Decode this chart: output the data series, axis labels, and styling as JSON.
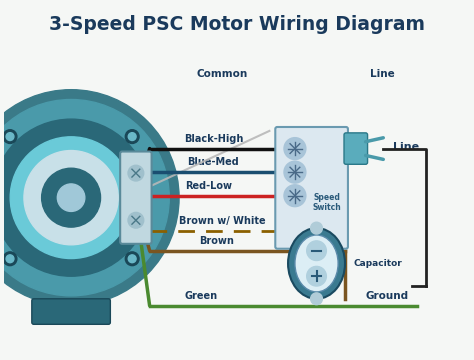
{
  "title": "3-Speed PSC Motor Wiring Diagram",
  "title_color": "#1a3a5c",
  "title_fontsize": 13.5,
  "bg_color": "#f5f7f5",
  "wire_labels": [
    "Black-High",
    "Blue-Med",
    "Red-Low",
    "Brown w/ White",
    "Brown",
    "Green"
  ],
  "wire_colors": [
    "#111111",
    "#1a4e70",
    "#cc2222",
    "#8B6914",
    "#7a5520",
    "#4a8a30"
  ],
  "label_color": "#1a3a5c",
  "common_label": "Common",
  "line_label_top": "Line",
  "line_label_right": "Line",
  "ground_label": "Ground",
  "speed_switch_label": "Speed\nSwitch",
  "capacitor_label": "Capacitor",
  "switch_color": "#dce8f0",
  "switch_border": "#6a9ab0",
  "motor_outer": "#3a7a88",
  "motor_ring1": "#4a9aaa",
  "motor_ring2": "#2a6878",
  "motor_inner_light": "#5abaca",
  "motor_core_dark": "#2a6878",
  "motor_hub_light": "#a0c8d8",
  "motor_plate_color": "#c0d8e0",
  "bolt_dark": "#1a4858",
  "bolt_light": "#6ab8c8"
}
